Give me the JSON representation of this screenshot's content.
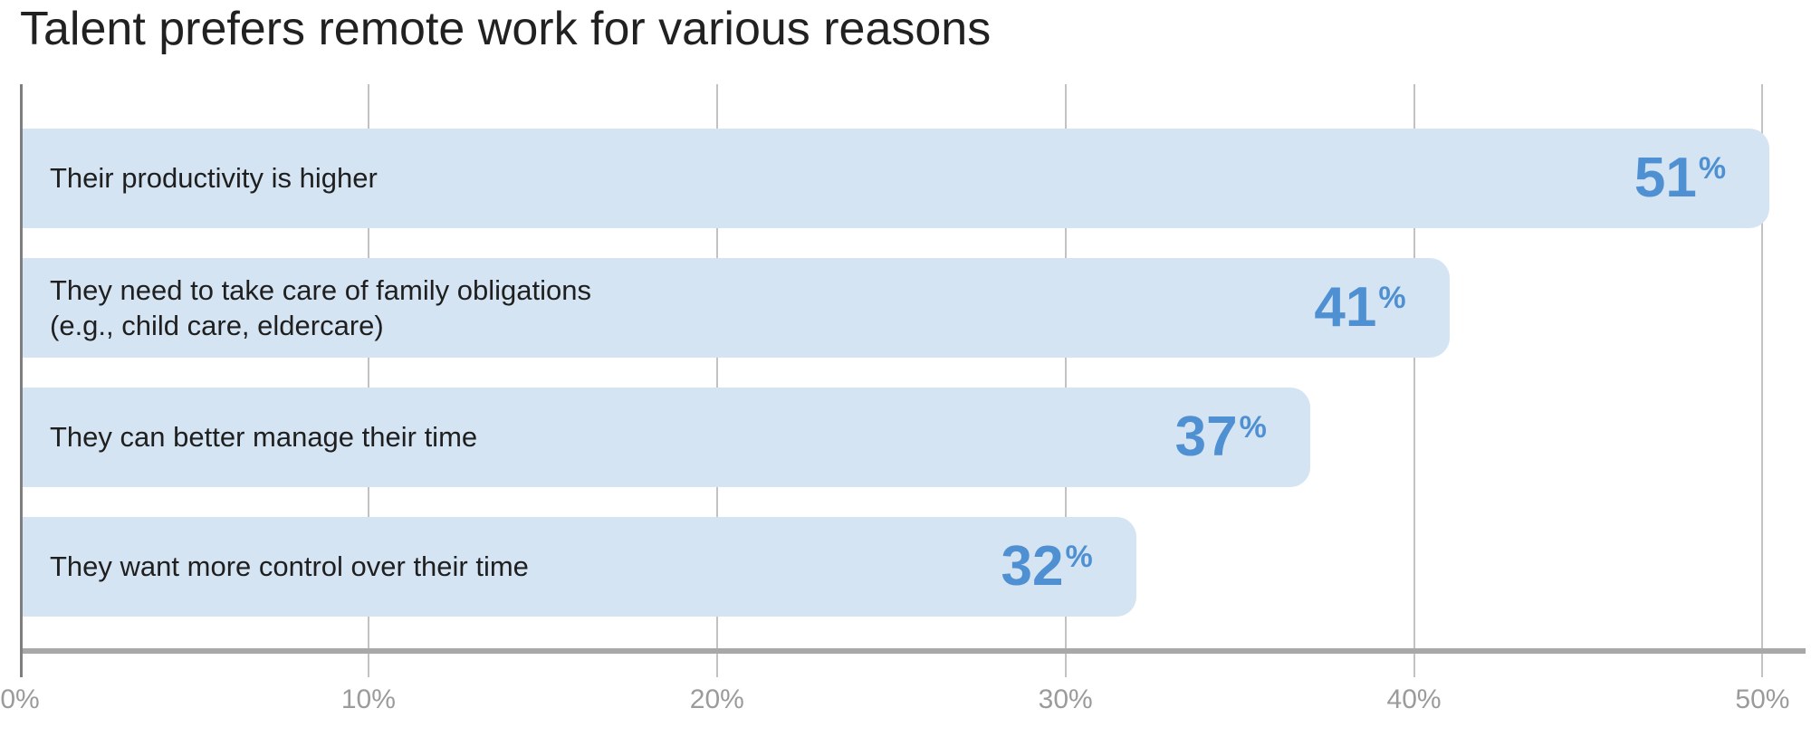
{
  "chart_data": {
    "type": "bar",
    "orientation": "horizontal",
    "title": "Talent prefers remote work for various reasons",
    "categories": [
      "Their productivity is higher",
      "They need to take care of family obligations\n(e.g., child care, eldercare)",
      "They can better manage their time",
      "They want more control over their time"
    ],
    "values": [
      51,
      41,
      37,
      32
    ],
    "value_suffix": "%",
    "xlabel": "",
    "ylabel": "",
    "xlim": [
      0,
      50.3
    ],
    "x_tick_values": [
      0,
      10,
      20,
      30,
      40,
      50
    ],
    "x_ticks": [
      "0%",
      "10%",
      "20%",
      "30%",
      "40%",
      "50%"
    ],
    "grid": "vertical",
    "legend": "none",
    "colors": {
      "bar_fill": "#d4e4f3",
      "value_text": "#4e90d2",
      "label_text": "#1f1f1f",
      "title_text": "#212121",
      "grid_line": "#c2c2c2",
      "y_axis_line": "#7e7e7e",
      "x_baseline": "#a8a8a8",
      "tick_text": "#9b9b9b"
    }
  }
}
